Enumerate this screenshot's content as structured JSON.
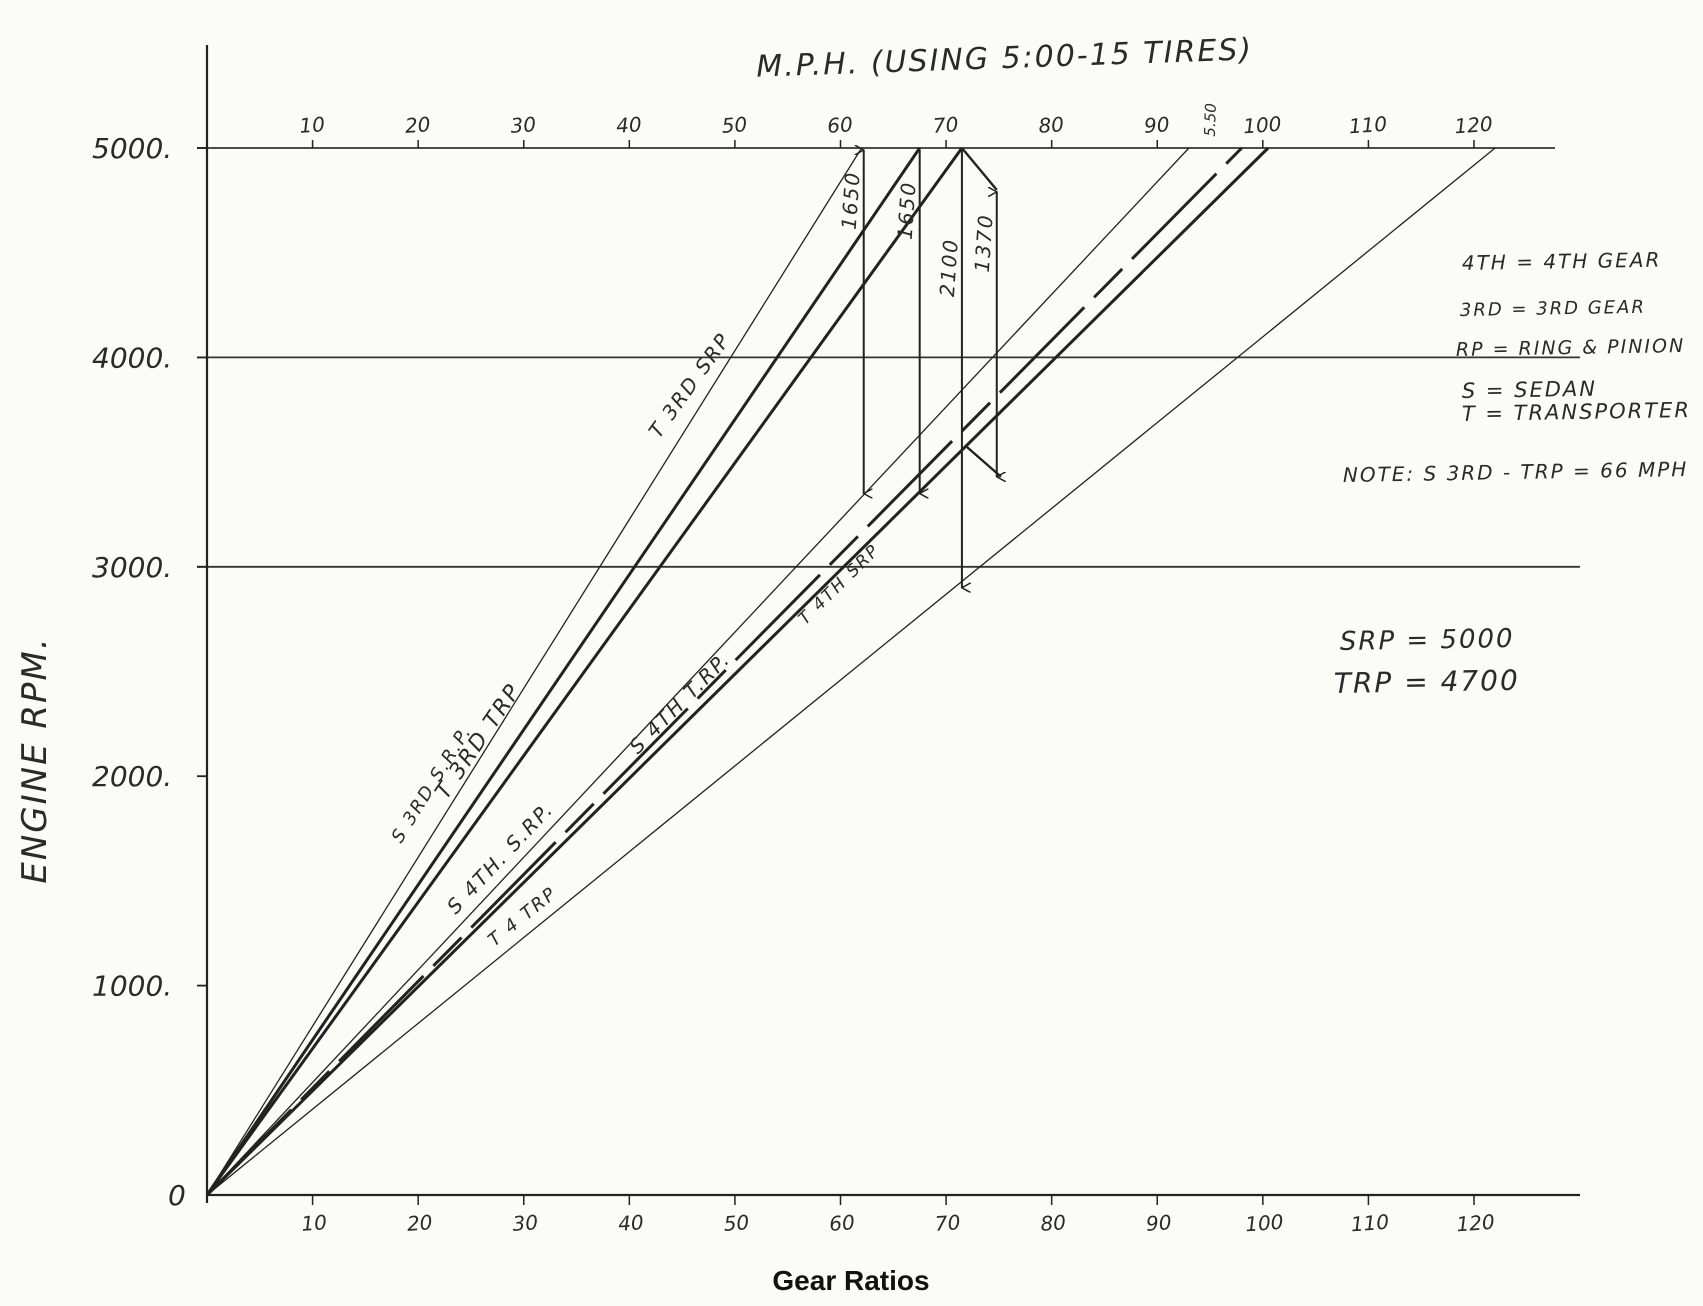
{
  "chart_data": {
    "type": "line",
    "title": "M.P.H. (USING 5:00-15 TIRES)",
    "caption": "Gear Ratios",
    "ylabel": "ENGINE RPM.",
    "xlim": [
      0,
      130
    ],
    "ylim": [
      0,
      5000
    ],
    "bottom_ticks": [
      "10",
      "20",
      "30",
      "40",
      "50",
      "60",
      "70",
      "80",
      "90",
      "100",
      "110",
      "120"
    ],
    "top_ticks": [
      "10",
      "20",
      "30",
      "40",
      "50",
      "60",
      "70",
      "80",
      "90",
      "100",
      "110",
      "120"
    ],
    "top_extra_tick": "5.50",
    "y_ticks": [
      "0",
      "1000.",
      "2000.",
      "3000.",
      "4000.",
      "5000."
    ],
    "gridlines_y": [
      3000,
      4000,
      5000
    ],
    "series": [
      {
        "name": "S 3RD S.R.P.",
        "mph_at_5000": 62,
        "weight": "thin",
        "dash": false
      },
      {
        "name": "T 3RD TRP",
        "mph_at_5000": 67.5,
        "weight": "bold",
        "dash": false
      },
      {
        "name": "T 3RD SRP",
        "mph_at_5000": 71.5,
        "weight": "bold",
        "dash": false
      },
      {
        "name": "S 4TH. S.RP.",
        "mph_at_5000": 93,
        "weight": "thin",
        "dash": false
      },
      {
        "name": "S 4TH T.RP.",
        "mph_at_5000": 98,
        "weight": "bold",
        "dash": true
      },
      {
        "name": "T 4TH SRP",
        "mph_at_5000": 100.5,
        "weight": "bold",
        "dash": false
      },
      {
        "name": "T 4 TRP",
        "mph_at_5000": 122,
        "weight": "thin",
        "dash": false
      }
    ],
    "drops": [
      {
        "label": "1650",
        "mph": 62.2,
        "from": 5000,
        "to": 3350
      },
      {
        "label": "1650",
        "mph": 67.5,
        "from": 5000,
        "to": 3350
      },
      {
        "label": "2100",
        "mph": 71.5,
        "from": 5000,
        "to": 2900
      },
      {
        "label": "1370",
        "mph": 74.8,
        "from": 4800,
        "to": 3430
      }
    ],
    "annotations": [
      "4TH = 4TH GEAR",
      "3RD = 3RD GEAR",
      "RP = RING & PINION",
      "S = SEDAN",
      "T = TRANSPORTER",
      "NOTE: S 3RD - TRP = 66 MPH",
      "SRP = 5000",
      "TRP = 4700"
    ],
    "grid": false,
    "legend": "none"
  }
}
